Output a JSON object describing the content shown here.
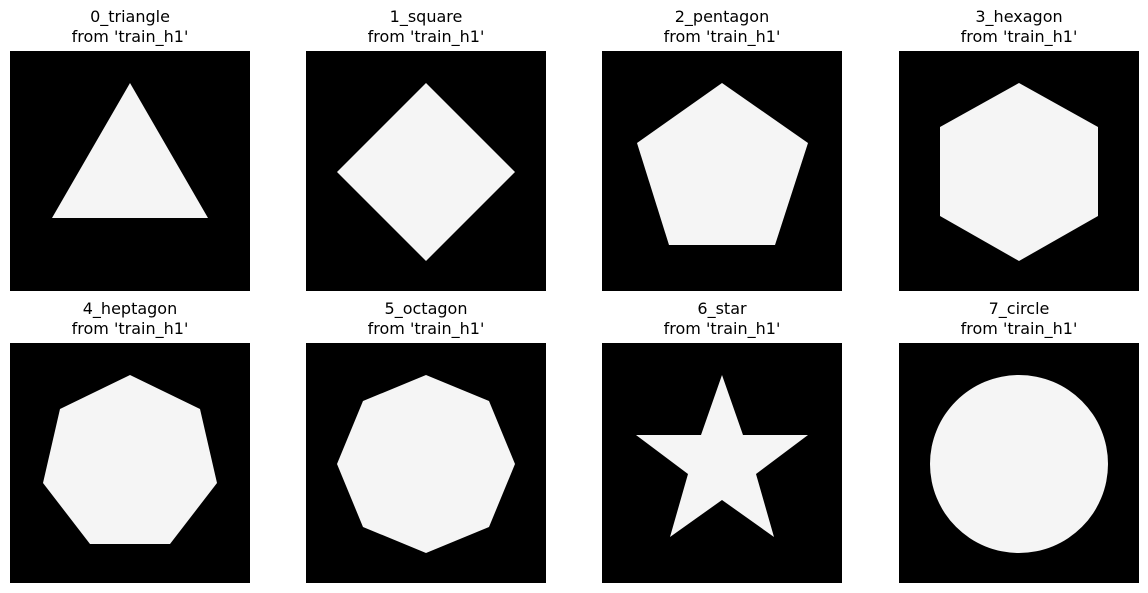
{
  "figure": {
    "background_color": "#000000",
    "shape_color": "#f5f5f5",
    "panels": [
      {
        "id": "triangle",
        "name": "0_triangle",
        "source": "from 'train_h1'",
        "shape": "triangle"
      },
      {
        "id": "square",
        "name": "1_square",
        "source": "from 'train_h1'",
        "shape": "square"
      },
      {
        "id": "pentagon",
        "name": "2_pentagon",
        "source": "from 'train_h1'",
        "shape": "pentagon"
      },
      {
        "id": "hexagon",
        "name": "3_hexagon",
        "source": "from 'train_h1'",
        "shape": "hexagon"
      },
      {
        "id": "heptagon",
        "name": "4_heptagon",
        "source": "from 'train_h1'",
        "shape": "heptagon"
      },
      {
        "id": "octagon",
        "name": "5_octagon",
        "source": "from 'train_h1'",
        "shape": "octagon"
      },
      {
        "id": "star",
        "name": "6_star",
        "source": "from 'train_h1'",
        "shape": "star"
      },
      {
        "id": "circle",
        "name": "7_circle",
        "source": "from 'train_h1'",
        "shape": "circle"
      }
    ]
  }
}
